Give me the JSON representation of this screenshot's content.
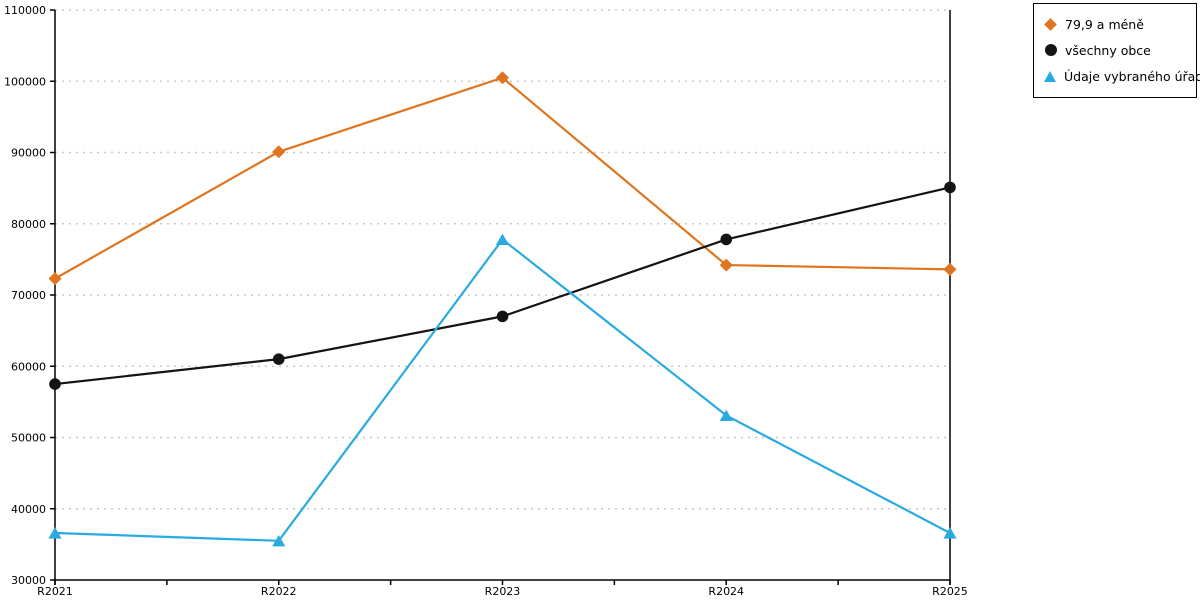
{
  "chart_data": {
    "type": "line",
    "categories": [
      "R2021",
      "R2022",
      "R2023",
      "R2024",
      "R2025"
    ],
    "series": [
      {
        "name": "79,9 a méně",
        "marker": "diamond",
        "color": "#E0751F",
        "values": [
          72300,
          90100,
          100500,
          74200,
          73600
        ]
      },
      {
        "name": "všechny obce",
        "marker": "circle",
        "color": "#141414",
        "values": [
          57500,
          61000,
          67000,
          77800,
          85100
        ]
      },
      {
        "name": "Údaje vybraného úřadu",
        "marker": "triangle",
        "color": "#29ABE2",
        "values": [
          36600,
          35500,
          77800,
          53100,
          36600
        ]
      }
    ],
    "ylim": [
      30000,
      110000
    ],
    "yticks": [
      30000,
      40000,
      50000,
      60000,
      70000,
      80000,
      90000,
      100000,
      110000
    ],
    "grid": "horizontal-dotted",
    "gridline_color": "#C8C8C8",
    "axis_color": "#000000",
    "legend_position": "top-right"
  }
}
